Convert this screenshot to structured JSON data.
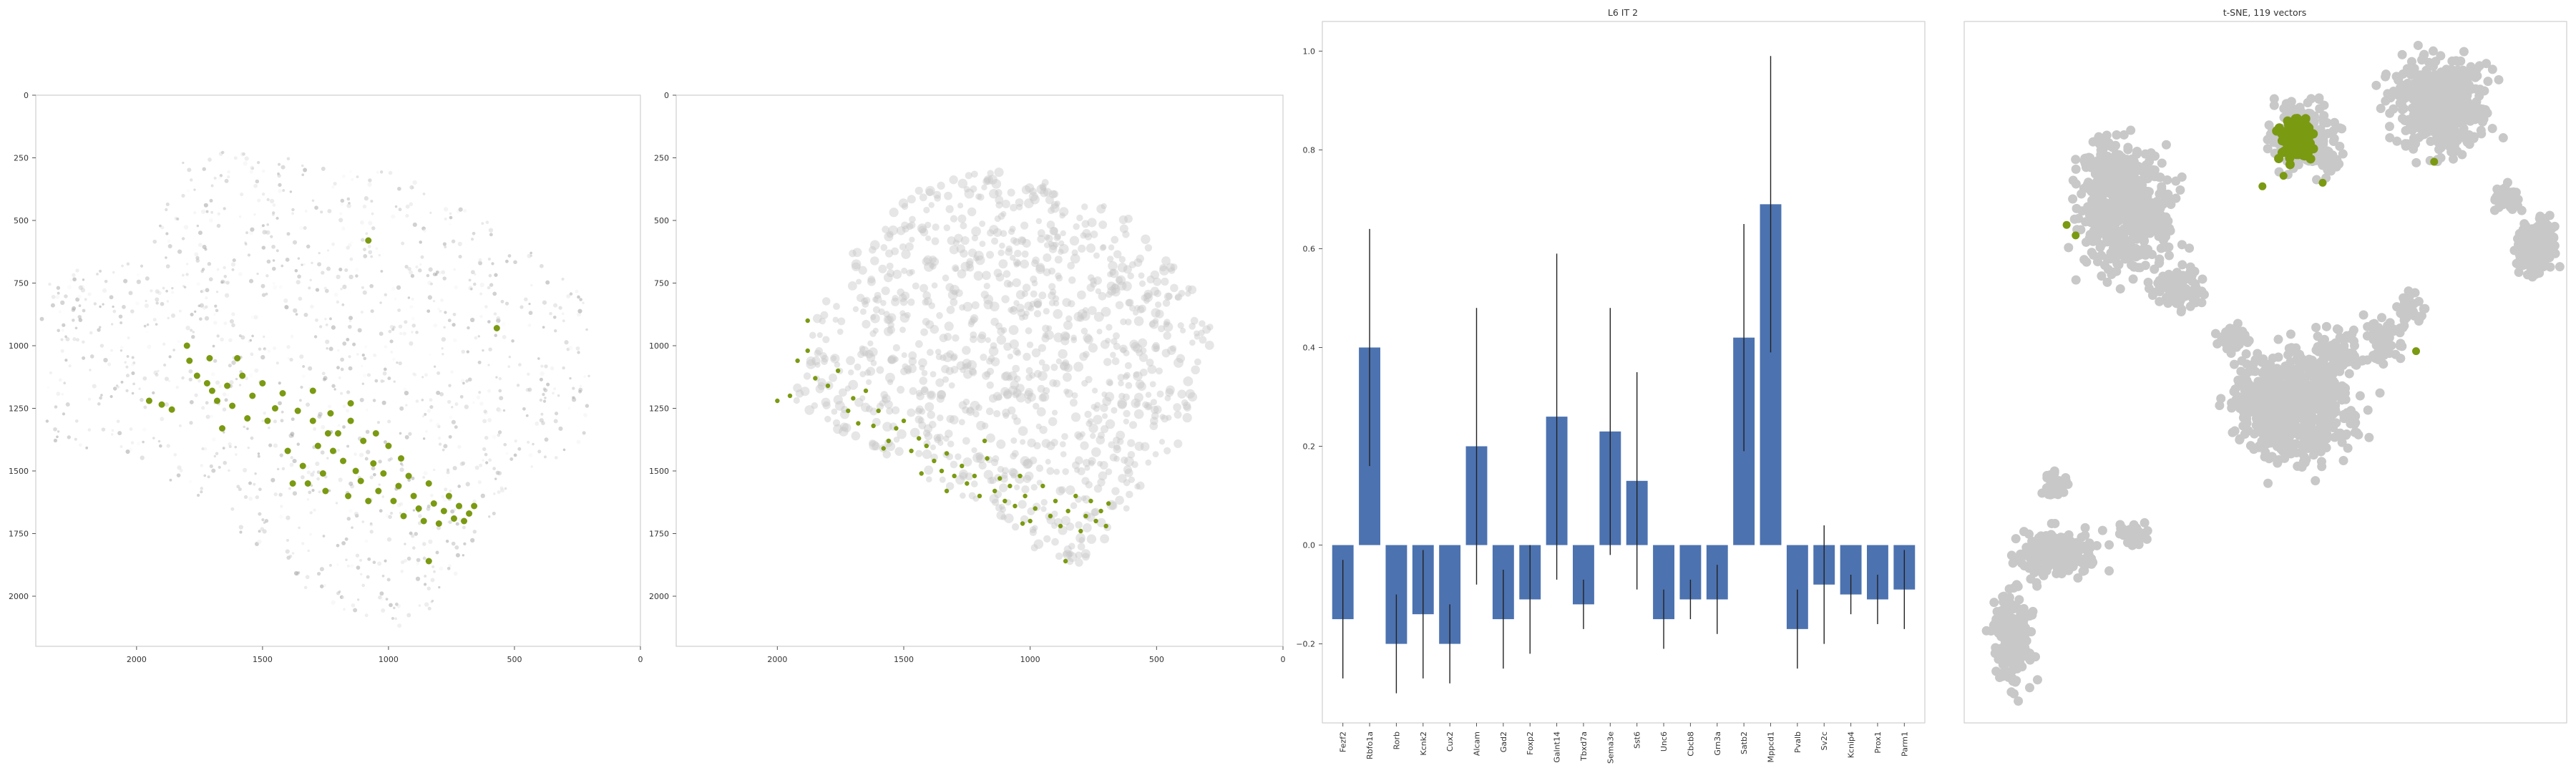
{
  "colors": {
    "highlight": "#7a9a12",
    "gray_dot": "#c8c8c8",
    "bar": "#4c72b0",
    "err": "#222222",
    "frame": "#cfcfcf"
  },
  "panels": {
    "spatial1": {
      "title": "",
      "xticks": [
        "2000",
        "1500",
        "1000",
        "500",
        "0"
      ],
      "yticks": [
        "0",
        "250",
        "500",
        "750",
        "1000",
        "1250",
        "1500",
        "1750",
        "2000"
      ]
    },
    "spatial2": {
      "title": "",
      "xticks": [
        "2000",
        "1500",
        "1000",
        "500",
        "0"
      ],
      "yticks": [
        "0",
        "250",
        "500",
        "750",
        "1000",
        "1250",
        "1500",
        "1750",
        "2000"
      ]
    },
    "bar": {
      "title": "L6 IT 2",
      "yticks": [
        "1.0",
        "0.8",
        "0.6",
        "0.4",
        "0.2",
        "0.0",
        "−0.2"
      ]
    },
    "tsne": {
      "title": "t-SNE, 119 vectors"
    }
  },
  "chart_data": [
    {
      "type": "scatter",
      "title": "",
      "description_axes": "spatial cell coordinates, x axis inverted",
      "xlim": [
        2400,
        0
      ],
      "ylim": [
        2200,
        0
      ],
      "xticks": [
        2000,
        1500,
        1000,
        500,
        0
      ],
      "yticks": [
        0,
        250,
        500,
        750,
        1000,
        1250,
        1500,
        1750,
        2000
      ],
      "grid": false,
      "series": [
        {
          "points": [
            [
              1950,
              1220
            ],
            [
              1900,
              1235
            ],
            [
              1860,
              1255
            ],
            [
              1800,
              1000
            ],
            [
              1790,
              1060
            ],
            [
              1760,
              1120
            ],
            [
              1720,
              1150
            ],
            [
              1710,
              1050
            ],
            [
              1700,
              1180
            ],
            [
              1680,
              1220
            ],
            [
              1660,
              1330
            ],
            [
              1640,
              1160
            ],
            [
              1620,
              1240
            ],
            [
              1600,
              1050
            ],
            [
              1580,
              1120
            ],
            [
              1560,
              1290
            ],
            [
              1540,
              1200
            ],
            [
              1500,
              1150
            ],
            [
              1480,
              1300
            ],
            [
              1450,
              1250
            ],
            [
              1420,
              1190
            ],
            [
              1400,
              1420
            ],
            [
              1380,
              1550
            ],
            [
              1360,
              1260
            ],
            [
              1340,
              1480
            ],
            [
              1320,
              1550
            ],
            [
              1300,
              1300
            ],
            [
              1280,
              1400
            ],
            [
              1260,
              1510
            ],
            [
              1240,
              1350
            ],
            [
              1220,
              1420
            ],
            [
              1200,
              1350
            ],
            [
              1180,
              1460
            ],
            [
              1160,
              1600
            ],
            [
              1150,
              1300
            ],
            [
              1130,
              1500
            ],
            [
              1110,
              1540
            ],
            [
              1100,
              1380
            ],
            [
              1080,
              1620
            ],
            [
              1060,
              1470
            ],
            [
              1040,
              1580
            ],
            [
              1020,
              1510
            ],
            [
              1000,
              1400
            ],
            [
              980,
              1620
            ],
            [
              960,
              1560
            ],
            [
              940,
              1680
            ],
            [
              920,
              1520
            ],
            [
              900,
              1600
            ],
            [
              880,
              1650
            ],
            [
              860,
              1700
            ],
            [
              840,
              1550
            ],
            [
              820,
              1630
            ],
            [
              800,
              1710
            ],
            [
              780,
              1660
            ],
            [
              760,
              1600
            ],
            [
              740,
              1690
            ],
            [
              720,
              1640
            ],
            [
              700,
              1700
            ],
            [
              680,
              1670
            ],
            [
              660,
              1640
            ],
            [
              840,
              1860
            ],
            [
              1080,
              580
            ],
            [
              570,
              930
            ],
            [
              1300,
              1180
            ],
            [
              1230,
              1270
            ],
            [
              1150,
              1230
            ],
            [
              1250,
              1580
            ],
            [
              1050,
              1350
            ],
            [
              950,
              1450
            ]
          ]
        }
      ]
    },
    {
      "type": "scatter",
      "title": "",
      "description_axes": "spatial cell coordinates, x axis inverted",
      "xlim": [
        2400,
        0
      ],
      "ylim": [
        2200,
        0
      ],
      "xticks": [
        2000,
        1500,
        1000,
        500,
        0
      ],
      "yticks": [
        0,
        250,
        500,
        750,
        1000,
        1250,
        1500,
        1750,
        2000
      ],
      "grid": false,
      "series": [
        {
          "points": [
            [
              2000,
              1220
            ],
            [
              1920,
              1060
            ],
            [
              1880,
              1020
            ],
            [
              1850,
              1130
            ],
            [
              1800,
              1160
            ],
            [
              1760,
              1100
            ],
            [
              1720,
              1260
            ],
            [
              1700,
              1210
            ],
            [
              1680,
              1310
            ],
            [
              1650,
              1180
            ],
            [
              1620,
              1320
            ],
            [
              1600,
              1260
            ],
            [
              1560,
              1380
            ],
            [
              1530,
              1330
            ],
            [
              1500,
              1300
            ],
            [
              1470,
              1420
            ],
            [
              1440,
              1370
            ],
            [
              1410,
              1400
            ],
            [
              1380,
              1460
            ],
            [
              1350,
              1500
            ],
            [
              1330,
              1430
            ],
            [
              1300,
              1520
            ],
            [
              1270,
              1480
            ],
            [
              1250,
              1550
            ],
            [
              1220,
              1520
            ],
            [
              1200,
              1600
            ],
            [
              1170,
              1450
            ],
            [
              1140,
              1580
            ],
            [
              1120,
              1530
            ],
            [
              1100,
              1620
            ],
            [
              1080,
              1560
            ],
            [
              1060,
              1640
            ],
            [
              1040,
              1520
            ],
            [
              1020,
              1600
            ],
            [
              1000,
              1700
            ],
            [
              980,
              1650
            ],
            [
              950,
              1560
            ],
            [
              920,
              1680
            ],
            [
              900,
              1620
            ],
            [
              880,
              1720
            ],
            [
              850,
              1660
            ],
            [
              820,
              1600
            ],
            [
              800,
              1740
            ],
            [
              780,
              1680
            ],
            [
              760,
              1620
            ],
            [
              740,
              1700
            ],
            [
              720,
              1660
            ],
            [
              700,
              1720
            ],
            [
              690,
              1630
            ],
            [
              860,
              1860
            ],
            [
              1880,
              900
            ],
            [
              1950,
              1200
            ],
            [
              1580,
              1410
            ],
            [
              1430,
              1510
            ],
            [
              1180,
              1380
            ],
            [
              1330,
              1580
            ],
            [
              1030,
              1710
            ]
          ]
        }
      ]
    },
    {
      "type": "bar",
      "title": "L6 IT 2",
      "categories": [
        "Fezf2",
        "Rbfo1a",
        "Rorb",
        "Kcnk2",
        "Cux2",
        "Alcam",
        "Gad2",
        "Foxp2",
        "Galnt14",
        "Tbxd7a",
        "Sema3e",
        "Sst6",
        "Unc6",
        "Cbcb8",
        "Grn3a",
        "Satb2",
        "Mppcd1",
        "Pvalb",
        "Sv2c",
        "Kcnip4",
        "Prox1",
        "Parm1"
      ],
      "values": [
        -0.15,
        0.4,
        -0.2,
        -0.14,
        -0.2,
        0.2,
        -0.15,
        -0.11,
        0.26,
        -0.12,
        0.23,
        0.13,
        -0.15,
        -0.11,
        -0.11,
        0.42,
        0.69,
        -0.17,
        -0.08,
        -0.1,
        -0.11,
        -0.09
      ],
      "errors": [
        0.12,
        0.24,
        0.1,
        0.13,
        0.08,
        0.28,
        0.1,
        0.11,
        0.33,
        0.05,
        0.25,
        0.22,
        0.06,
        0.04,
        0.07,
        0.23,
        0.3,
        0.08,
        0.12,
        0.04,
        0.05,
        0.08
      ],
      "ylim": [
        -0.36,
        1.06
      ],
      "yticks": [
        1.0,
        0.8,
        0.6,
        0.4,
        0.2,
        0.0,
        -0.2
      ],
      "grid": false
    },
    {
      "type": "scatter",
      "title": "t-SNE, 119 vectors",
      "xlim": [
        0,
        100
      ],
      "ylim": [
        0,
        100
      ],
      "axes_ticks": false,
      "grid": false
    }
  ]
}
